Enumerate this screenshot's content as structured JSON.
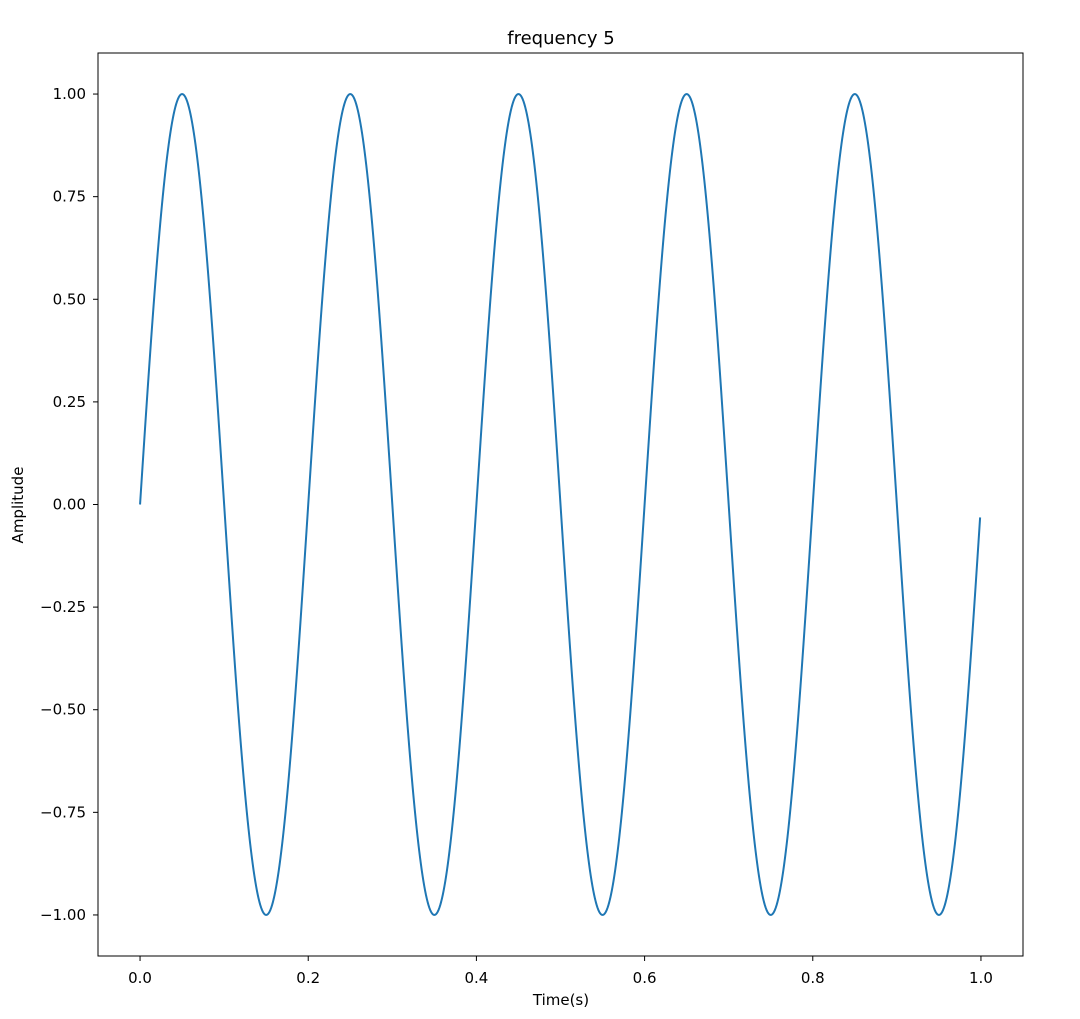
{
  "chart_data": {
    "type": "line",
    "title": "frequency 5",
    "xlabel": "Time(s)",
    "ylabel": "Amplitude",
    "xlim": [
      -0.05,
      1.05
    ],
    "ylim": [
      -1.1,
      1.1
    ],
    "grid": false,
    "legend": "none",
    "x_ticks": [
      0.0,
      0.2,
      0.4,
      0.6,
      0.8,
      1.0
    ],
    "x_tick_labels": [
      "0.0",
      "0.2",
      "0.4",
      "0.6",
      "0.8",
      "1.0"
    ],
    "y_ticks": [
      1.0,
      0.75,
      0.5,
      0.25,
      0.0,
      -0.25,
      -0.5,
      -0.75,
      -1.0
    ],
    "y_tick_labels": [
      "1.00",
      "0.75",
      "0.50",
      "0.25",
      "0.00",
      "−0.25",
      "−0.50",
      "−0.75",
      "−1.00"
    ],
    "series": [
      {
        "color": "#1f77b4",
        "function": "sin(2*pi*5*t)",
        "frequency": 5,
        "amplitude": 1.0,
        "x_start": 0.0,
        "x_end": 0.999,
        "x": [
          0.0,
          0.05,
          0.1,
          0.15,
          0.2,
          0.25,
          0.3,
          0.35,
          0.4,
          0.45,
          0.5,
          0.55,
          0.6,
          0.65,
          0.7,
          0.75,
          0.8,
          0.85,
          0.9,
          0.95,
          0.999
        ],
        "y": [
          0.0,
          1.0,
          0.0,
          -1.0,
          0.0,
          1.0,
          0.0,
          -1.0,
          0.0,
          1.0,
          0.0,
          -1.0,
          0.0,
          1.0,
          0.0,
          -1.0,
          0.0,
          1.0,
          0.0,
          -1.0,
          -0.03
        ]
      }
    ]
  }
}
